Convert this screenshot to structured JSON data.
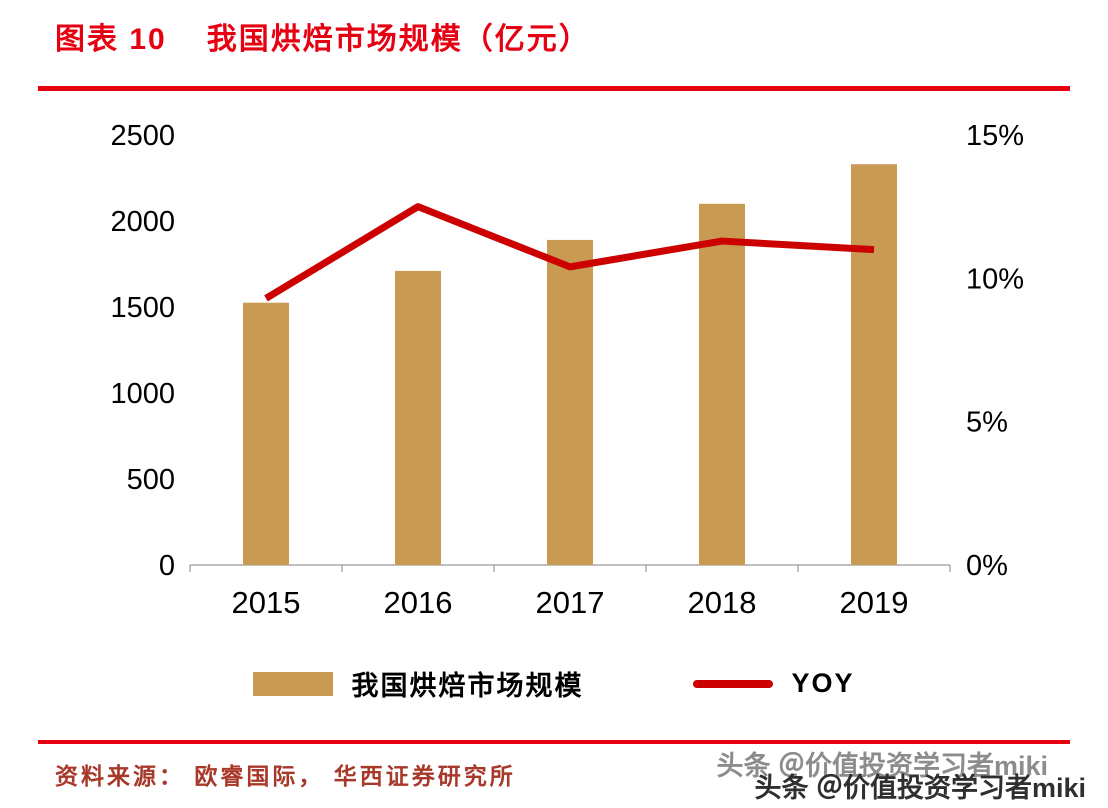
{
  "header": {
    "label": "图表 10",
    "title": "我国烘焙市场规模（亿元）",
    "accent_color": "#e60012"
  },
  "chart_data": {
    "type": "combo",
    "title": "我国烘焙市场规模（亿元）",
    "categories": [
      "2015",
      "2016",
      "2017",
      "2018",
      "2019"
    ],
    "series": [
      {
        "name": "我国烘焙市场规模",
        "type": "bar",
        "axis": "left",
        "color": "#c89a52",
        "values": [
          1525,
          1710,
          1890,
          2100,
          2330
        ]
      },
      {
        "name": "YOY",
        "type": "line",
        "axis": "right",
        "color": "#cc0000",
        "values": [
          9.3,
          12.5,
          10.4,
          11.3,
          11.0
        ]
      }
    ],
    "left_axis": {
      "min": 0,
      "max": 2500,
      "ticks": [
        0,
        500,
        1000,
        1500,
        2000,
        2500
      ]
    },
    "right_axis": {
      "min": 0,
      "max": 15,
      "ticks": [
        0,
        5,
        10,
        15
      ],
      "tick_labels": [
        "0%",
        "5%",
        "10%",
        "15%"
      ]
    },
    "legend": [
      {
        "label": "我国烘焙市场规模",
        "swatch": "bar"
      },
      {
        "label": "YOY",
        "swatch": "line"
      }
    ],
    "grid": false,
    "legend_position": "bottom"
  },
  "footer": {
    "source": "资料来源： 欧睿国际， 华西证券研究所",
    "color": "#a8392a"
  },
  "watermark": {
    "text": "头条 ＠价值投资学习者miki"
  }
}
